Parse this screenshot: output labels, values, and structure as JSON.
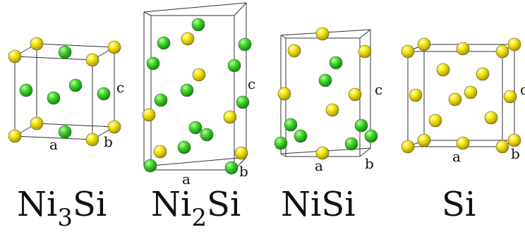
{
  "panels": [
    {
      "id": "ni3si",
      "formula": {
        "prefix": "Ni",
        "sub": "3",
        "suffix": "Si"
      },
      "axis_labels": {
        "a": "a",
        "b": "b",
        "c": "c"
      }
    },
    {
      "id": "ni2si",
      "formula": {
        "prefix": "Ni",
        "sub": "2",
        "suffix": "Si"
      },
      "axis_labels": {
        "a": "a",
        "b": "b",
        "c": "c"
      }
    },
    {
      "id": "nisi",
      "formula": {
        "prefix": "NiSi",
        "sub": "",
        "suffix": ""
      },
      "axis_labels": {
        "a": "a",
        "b": "b",
        "c": "c"
      }
    },
    {
      "id": "si",
      "formula": {
        "prefix": "Si",
        "sub": "",
        "suffix": ""
      },
      "axis_labels": {
        "a": "a",
        "b": "b",
        "c": "c"
      }
    }
  ],
  "colors": {
    "ni_atom": "#2ecc1f",
    "si_atom": "#f2e600",
    "cell_edge": "#333333"
  }
}
